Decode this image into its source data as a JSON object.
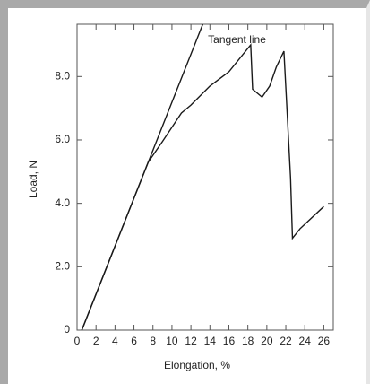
{
  "chart_data": {
    "type": "line",
    "xlabel": "Elongation, %",
    "ylabel": "Load, N",
    "annotation": {
      "text": "Tangent line",
      "x": 13.8,
      "y": 9.15
    },
    "xlim": [
      0,
      27
    ],
    "ylim": [
      0,
      9.65
    ],
    "xticks": [
      0,
      2,
      4,
      6,
      8,
      10,
      12,
      14,
      16,
      18,
      20,
      22,
      24,
      26
    ],
    "yticks": [
      0,
      {
        "value": 2,
        "label": "2.0"
      },
      {
        "value": 4,
        "label": "4.0"
      },
      {
        "value": 6,
        "label": "6.0"
      },
      {
        "value": 8,
        "label": "8.0"
      }
    ],
    "series": [
      {
        "color": "#1a1a1a",
        "x": [
          0.5,
          7.5,
          9,
          11,
          12,
          14,
          16,
          18.3,
          18.5,
          19.5,
          20.3,
          21,
          21.8,
          22.5,
          22.7,
          23.5,
          26
        ],
        "values": [
          0,
          5.3,
          5.95,
          6.85,
          7.1,
          7.7,
          8.15,
          9.0,
          7.6,
          7.35,
          7.7,
          8.3,
          8.8,
          4.8,
          2.9,
          3.2,
          3.9
        ]
      },
      {
        "color": "#1a1a1a",
        "x": [
          0.5,
          13.25
        ],
        "values": [
          0,
          9.65
        ]
      }
    ]
  }
}
